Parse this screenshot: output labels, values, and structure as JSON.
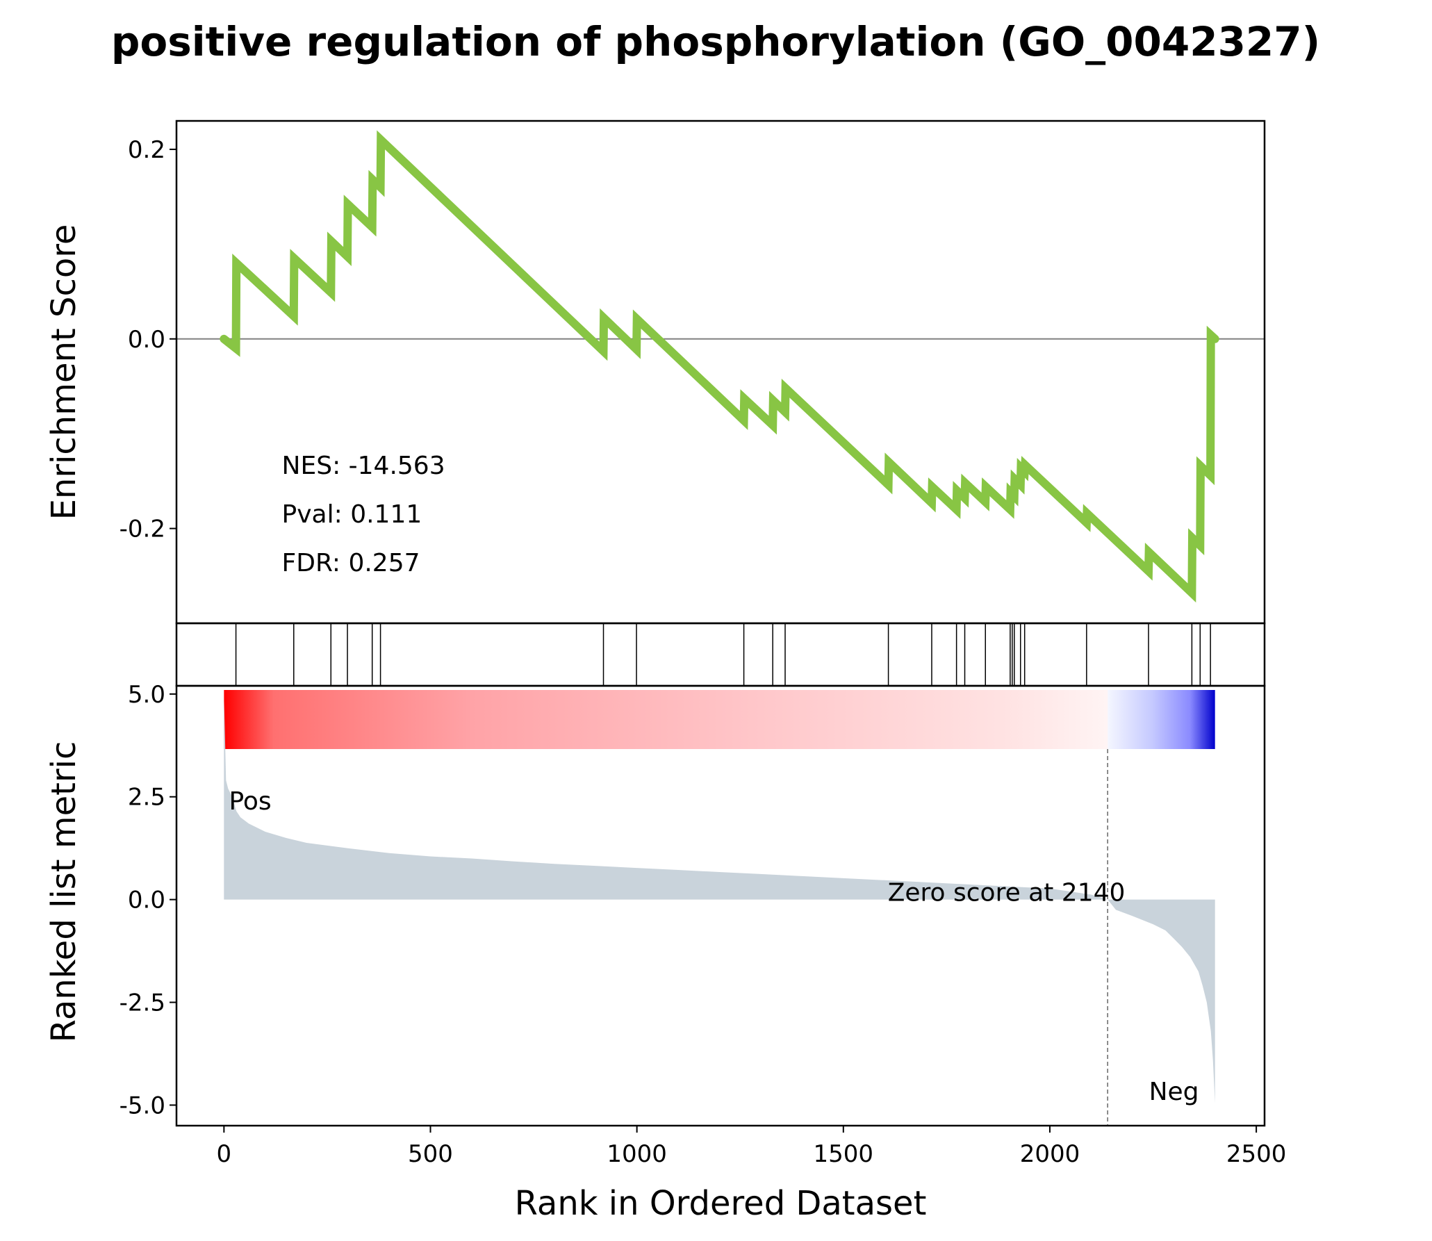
{
  "title": "positive regulation of phosphorylation (GO_0042327)",
  "colors": {
    "es_line": "#88C544",
    "ranked_fill": "#C9D3DB",
    "pos_label": "#FF0000",
    "neg_label": "#0000FF"
  },
  "chart_data": {
    "type": "line",
    "xlabel": "Rank in Ordered Dataset",
    "xlim": [
      -115,
      2520
    ],
    "xticks": [
      0,
      500,
      1000,
      1500,
      2000,
      2500
    ],
    "enrichment_panel": {
      "ylabel": "Enrichment Score",
      "ylim": [
        -0.3,
        0.23
      ],
      "yticks": [
        {
          "value": 0.2,
          "label": "0.2"
        },
        {
          "value": 0.0,
          "label": "0.0"
        },
        {
          "value": -0.2,
          "label": "-0.2"
        }
      ],
      "stats": {
        "nes": "NES: -14.563",
        "pval": "Pval: 0.111",
        "fdr": "FDR: 0.257"
      },
      "series": [
        {
          "x": [
            0,
            29,
            30,
            169,
            170,
            259,
            260,
            299,
            300,
            359,
            360,
            379,
            380,
            919,
            920,
            999,
            1000,
            1259,
            1260,
            1329,
            1330,
            1359,
            1360,
            1609,
            1610,
            1714,
            1715,
            1774,
            1775,
            1794,
            1795,
            1844,
            1845,
            1904,
            1905,
            1914,
            1915,
            1929,
            1930,
            1939,
            1940,
            2089,
            2090,
            2239,
            2240,
            2344,
            2345,
            2364,
            2365,
            2389,
            2390,
            2400
          ],
          "y": [
            0.0,
            -0.01,
            0.08,
            0.024,
            0.085,
            0.049,
            0.103,
            0.087,
            0.142,
            0.118,
            0.168,
            0.16,
            0.21,
            -0.013,
            0.022,
            -0.011,
            0.021,
            -0.086,
            -0.063,
            -0.091,
            -0.065,
            -0.077,
            -0.052,
            -0.154,
            -0.13,
            -0.173,
            -0.156,
            -0.18,
            -0.16,
            -0.168,
            -0.152,
            -0.172,
            -0.156,
            -0.18,
            -0.162,
            -0.166,
            -0.148,
            -0.154,
            -0.136,
            -0.14,
            -0.133,
            -0.194,
            -0.184,
            -0.245,
            -0.225,
            -0.268,
            -0.21,
            -0.218,
            -0.134,
            -0.144,
            0.004,
            0.0
          ]
        }
      ]
    },
    "hits_panel": {
      "hits": [
        29,
        169,
        259,
        299,
        359,
        379,
        919,
        999,
        1259,
        1329,
        1359,
        1609,
        1714,
        1774,
        1794,
        1844,
        1904,
        1909,
        1914,
        1929,
        1939,
        2089,
        2239,
        2344,
        2364,
        2389
      ]
    },
    "ranked_panel": {
      "ylabel": "Ranked list metric",
      "ylim": [
        -5.5,
        5.2
      ],
      "yticks": [
        {
          "value": 5.0,
          "label": "5.0"
        },
        {
          "value": 2.5,
          "label": "2.5"
        },
        {
          "value": 0.0,
          "label": "0.0"
        },
        {
          "value": -2.5,
          "label": "-2.5"
        },
        {
          "value": -5.0,
          "label": "-5.0"
        }
      ],
      "zero_cross": 2140,
      "zero_label": "Zero score at 2140",
      "pos_label": "Pos",
      "neg_label": "Neg",
      "profile": {
        "x": [
          0,
          1,
          5,
          10,
          20,
          30,
          40,
          60,
          80,
          100,
          150,
          200,
          300,
          400,
          500,
          600,
          700,
          800,
          900,
          1000,
          1100,
          1200,
          1300,
          1400,
          1500,
          1600,
          1700,
          1800,
          1900,
          2000,
          2100,
          2140,
          2160,
          2200,
          2250,
          2280,
          2300,
          2320,
          2340,
          2360,
          2370,
          2380,
          2390,
          2395,
          2400
        ],
        "y": [
          4.95,
          4.6,
          2.9,
          2.7,
          2.5,
          2.15,
          2.0,
          1.85,
          1.75,
          1.65,
          1.5,
          1.38,
          1.25,
          1.13,
          1.05,
          1.0,
          0.93,
          0.87,
          0.82,
          0.77,
          0.72,
          0.67,
          0.62,
          0.57,
          0.52,
          0.47,
          0.42,
          0.37,
          0.32,
          0.27,
          0.12,
          0.0,
          -0.25,
          -0.4,
          -0.6,
          -0.75,
          -0.95,
          -1.15,
          -1.4,
          -1.75,
          -2.1,
          -2.5,
          -3.2,
          -3.9,
          -4.95
        ]
      },
      "color_bar": {
        "stops": [
          {
            "rank": 0,
            "color": "#FF0000"
          },
          {
            "rank": 120,
            "color": "#FF7070"
          },
          {
            "rank": 600,
            "color": "#FFA3A7"
          },
          {
            "rank": 1300,
            "color": "#FFC7CA"
          },
          {
            "rank": 1900,
            "color": "#FFE3E3"
          },
          {
            "rank": 2139,
            "color": "#FFF4F4"
          },
          {
            "rank": 2141,
            "color": "#F4F6FF"
          },
          {
            "rank": 2250,
            "color": "#C4C8FF"
          },
          {
            "rank": 2340,
            "color": "#8A8AFF"
          },
          {
            "rank": 2400,
            "color": "#0000CC"
          }
        ]
      }
    }
  }
}
